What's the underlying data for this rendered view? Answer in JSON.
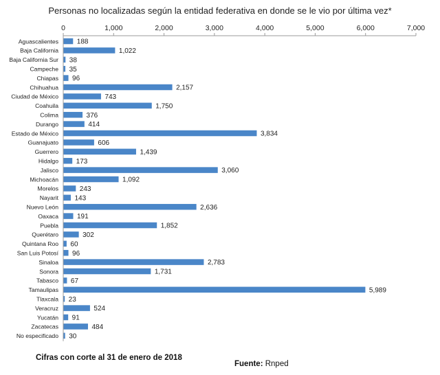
{
  "chart_data": {
    "type": "bar",
    "orientation": "horizontal",
    "title": "Personas no localizadas según la entidad federativa en donde se le vio por última vez*",
    "xaxis_position": "top",
    "xlim": [
      0,
      7000
    ],
    "xticks": [
      0,
      1000,
      2000,
      3000,
      4000,
      5000,
      6000,
      7000
    ],
    "xtick_labels": [
      "0",
      "1,000",
      "2,000",
      "3,000",
      "4,000",
      "5,000",
      "6,000",
      "7,000"
    ],
    "grid": false,
    "bar_color": "#4a86c8",
    "categories": [
      "Aguascalientes",
      "Baja California",
      "Baja California Sur",
      "Campeche",
      "Chiapas",
      "Chihuahua",
      "Ciudad de México",
      "Coahuila",
      "Colima",
      "Durango",
      "Estado de México",
      "Guanajuato",
      "Guerrero",
      "Hidalgo",
      "Jalisco",
      "Michoacán",
      "Morelos",
      "Nayarit",
      "Nuevo León",
      "Oaxaca",
      "Puebla",
      "Querétaro",
      "Quintana Roo",
      "San Luis Potosí",
      "Sinaloa",
      "Sonora",
      "Tabasco",
      "Tamaulipas",
      "Tlaxcala",
      "Veracruz",
      "Yucatán",
      "Zacatecas",
      "No especificado"
    ],
    "values": [
      188,
      1022,
      38,
      35,
      96,
      2157,
      743,
      1750,
      376,
      414,
      3834,
      606,
      1439,
      173,
      3060,
      1092,
      243,
      143,
      2636,
      191,
      1852,
      302,
      60,
      96,
      2783,
      1731,
      67,
      5989,
      23,
      524,
      91,
      484,
      30
    ],
    "value_labels": [
      "188",
      "1,022",
      "38",
      "35",
      "96",
      "2,157",
      "743",
      "1,750",
      "376",
      "414",
      "3,834",
      "606",
      "1,439",
      "173",
      "3,060",
      "1,092",
      "243",
      "143",
      "2,636",
      "191",
      "1,852",
      "302",
      "60",
      "96",
      "2,783",
      "1,731",
      "67",
      "5,989",
      "23",
      "524",
      "91",
      "484",
      "30"
    ]
  },
  "footnote": "Cifras con corte al 31 de enero de 2018",
  "source": {
    "label": "Fuente:",
    "value": "Rnped"
  }
}
